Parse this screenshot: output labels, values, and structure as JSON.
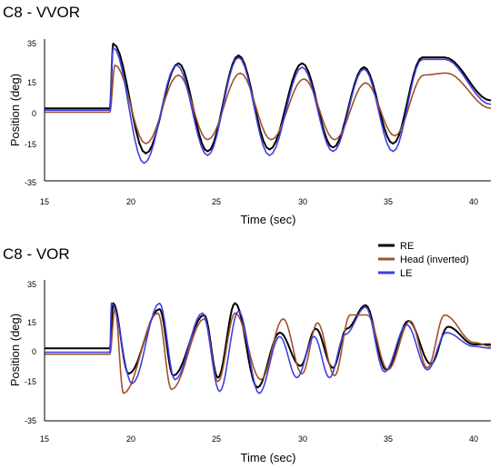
{
  "chart_data": [
    {
      "type": "line",
      "title": "C8 - VVOR",
      "xlabel": "Time (sec)",
      "ylabel": "Position (deg)",
      "xlim": [
        15,
        41
      ],
      "ylim": [
        -35,
        35
      ],
      "xticks": [
        "15",
        "20",
        "25",
        "30",
        "35",
        "40"
      ],
      "yticks": [
        "35",
        "15",
        "0",
        "-15",
        "-35"
      ],
      "model": {
        "start": 18.8,
        "stop": 38.8,
        "period": 1.9,
        "pre_offset": {
          "RE": 2,
          "Head (inverted)": 0,
          "LE": 1
        },
        "post_offset": {
          "RE": 6,
          "Head (inverted)": 2,
          "LE": 4
        }
      },
      "series": [
        {
          "name": "RE",
          "color": "#000000",
          "peaks": [
            [
              19.0,
              35
            ],
            [
              20.9,
              -21
            ],
            [
              22.8,
              25
            ],
            [
              24.5,
              -20
            ],
            [
              26.3,
              29
            ],
            [
              28.1,
              -19
            ],
            [
              30.0,
              25
            ],
            [
              31.8,
              -18
            ],
            [
              33.6,
              23
            ],
            [
              35.3,
              -16
            ],
            [
              37.0,
              28
            ],
            [
              38.3,
              28
            ]
          ]
        },
        {
          "name": "Head (inverted)",
          "color": "#a0522d",
          "peaks": [
            [
              19.1,
              24
            ],
            [
              20.9,
              -16
            ],
            [
              22.8,
              19
            ],
            [
              24.5,
              -14
            ],
            [
              26.4,
              20
            ],
            [
              28.2,
              -14
            ],
            [
              30.1,
              17
            ],
            [
              31.9,
              -14
            ],
            [
              33.7,
              15
            ],
            [
              35.4,
              -12
            ],
            [
              37.1,
              19
            ],
            [
              38.4,
              20
            ]
          ]
        },
        {
          "name": "LE",
          "color": "#4040e0",
          "peaks": [
            [
              19.0,
              33
            ],
            [
              20.8,
              -26
            ],
            [
              22.7,
              24
            ],
            [
              24.5,
              -22
            ],
            [
              26.3,
              28
            ],
            [
              28.1,
              -22
            ],
            [
              30.0,
              23
            ],
            [
              31.8,
              -20
            ],
            [
              33.6,
              22
            ],
            [
              35.3,
              -20
            ],
            [
              37.0,
              27
            ],
            [
              38.3,
              27
            ]
          ]
        }
      ]
    },
    {
      "type": "line",
      "title": "C8 - VOR",
      "xlabel": "Time (sec)",
      "ylabel": "Position (deg)",
      "xlim": [
        15,
        41
      ],
      "ylim": [
        -35,
        35
      ],
      "xticks": [
        "15",
        "20",
        "25",
        "30",
        "35",
        "40"
      ],
      "yticks": [
        "35",
        "15",
        "0",
        "-15",
        "-35"
      ],
      "legend_position": "top-right",
      "model": {
        "start": 18.8,
        "stop": 40.0,
        "period": 1.9,
        "pre_offset": {
          "RE": 2,
          "Head (inverted)": -1,
          "LE": 0
        },
        "post_offset": {
          "RE": 4,
          "Head (inverted)": 3,
          "LE": 2
        }
      },
      "series": [
        {
          "name": "RE",
          "color": "#000000",
          "peaks": [
            [
              19.0,
              25
            ],
            [
              19.9,
              -11
            ],
            [
              21.7,
              22
            ],
            [
              22.5,
              -12
            ],
            [
              24.3,
              19
            ],
            [
              25.1,
              -13
            ],
            [
              26.1,
              25
            ],
            [
              27.4,
              -18
            ],
            [
              28.7,
              10
            ],
            [
              29.9,
              -7
            ],
            [
              30.8,
              12
            ],
            [
              31.8,
              -8
            ],
            [
              32.6,
              12
            ],
            [
              33.7,
              24
            ],
            [
              34.9,
              -9
            ],
            [
              36.2,
              16
            ],
            [
              37.5,
              -6
            ],
            [
              38.5,
              13
            ],
            [
              40.0,
              4
            ]
          ]
        },
        {
          "name": "Head (inverted)",
          "color": "#a0522d",
          "peaks": [
            [
              19.1,
              22
            ],
            [
              19.6,
              -21
            ],
            [
              21.6,
              20
            ],
            [
              22.4,
              -19
            ],
            [
              24.3,
              17
            ],
            [
              25.1,
              -15
            ],
            [
              26.1,
              20
            ],
            [
              27.6,
              -14
            ],
            [
              28.9,
              17
            ],
            [
              30.0,
              -11
            ],
            [
              30.9,
              15
            ],
            [
              31.9,
              -12
            ],
            [
              32.8,
              19
            ],
            [
              33.8,
              19
            ],
            [
              35.0,
              -9
            ],
            [
              36.3,
              16
            ],
            [
              37.3,
              -8
            ],
            [
              38.3,
              19
            ],
            [
              40.0,
              5
            ]
          ]
        },
        {
          "name": "LE",
          "color": "#4040e0",
          "peaks": [
            [
              18.9,
              25
            ],
            [
              20.1,
              -16
            ],
            [
              21.7,
              25
            ],
            [
              22.6,
              -14
            ],
            [
              24.2,
              20
            ],
            [
              25.2,
              -20
            ],
            [
              26.3,
              21
            ],
            [
              27.5,
              -21
            ],
            [
              28.7,
              8
            ],
            [
              29.7,
              -13
            ],
            [
              30.7,
              8
            ],
            [
              31.6,
              -13
            ],
            [
              32.5,
              9
            ],
            [
              33.7,
              23
            ],
            [
              34.8,
              -10
            ],
            [
              36.1,
              14
            ],
            [
              37.3,
              -9
            ],
            [
              38.4,
              10
            ],
            [
              40.0,
              3
            ]
          ]
        }
      ]
    }
  ]
}
